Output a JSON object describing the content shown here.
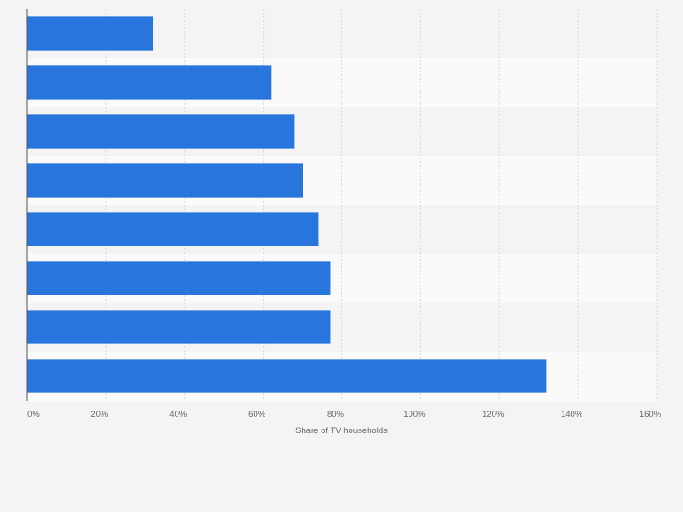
{
  "chart_data": {
    "type": "bar",
    "orientation": "horizontal",
    "categories": [
      "",
      "",
      "",
      "",
      "",
      "",
      "",
      ""
    ],
    "values": [
      32,
      62,
      68,
      70,
      74,
      77,
      77,
      132
    ],
    "xlabel": "Share of TV households",
    "ylabel": "",
    "xlim": [
      0,
      160
    ],
    "x_ticks": [
      0,
      20,
      40,
      60,
      80,
      100,
      120,
      140,
      160
    ],
    "tick_labels": [
      "0%",
      "20%",
      "40%",
      "60%",
      "80%",
      "100%",
      "120%",
      "140%",
      "160%"
    ],
    "grid": true,
    "legend": "none",
    "bar_color": "#2775dd"
  }
}
